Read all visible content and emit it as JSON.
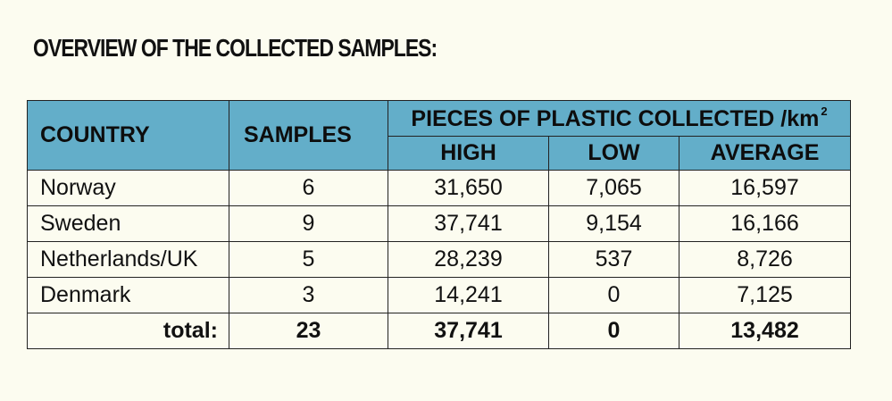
{
  "title": "OVERVIEW OF THE COLLECTED SAMPLES:",
  "table": {
    "headers": {
      "country": "COUNTRY",
      "samples": "SAMPLES",
      "group": "PIECES OF PLASTIC COLLECTED /km",
      "group_sup": "2",
      "high": "HIGH",
      "low": "LOW",
      "average": "AVERAGE"
    },
    "rows": [
      {
        "country": "Norway",
        "samples": "6",
        "high": "31,650",
        "low": "7,065",
        "average": "16,597"
      },
      {
        "country": "Sweden",
        "samples": "9",
        "high": "37,741",
        "low": "9,154",
        "average": "16,166"
      },
      {
        "country": "Netherlands/UK",
        "samples": "5",
        "high": "28,239",
        "low": "537",
        "average": "8,726"
      },
      {
        "country": "Denmark",
        "samples": "3",
        "high": "14,241",
        "low": "0",
        "average": "7,125"
      }
    ],
    "total": {
      "label": "total:",
      "samples": "23",
      "high": "37,741",
      "low": "0",
      "average": "13,482"
    }
  },
  "colors": {
    "header_bg": "#63aec9",
    "page_bg": "#fcfcf0"
  }
}
